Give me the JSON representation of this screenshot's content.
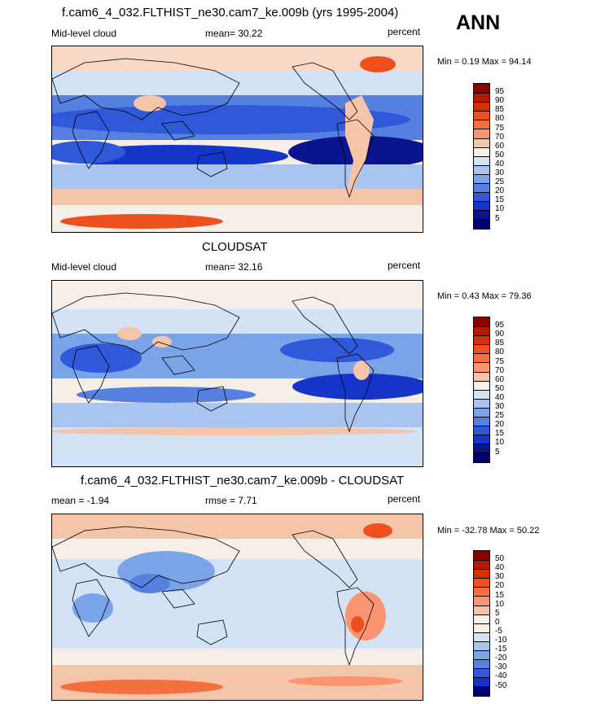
{
  "season": "ANN",
  "panels": [
    {
      "title": "f.cam6_4_032.FLTHIST_ne30.cam7_ke.009b (yrs 1995-2004)",
      "left_label": "Mid-level cloud",
      "center_label": "mean=  30.22",
      "right_label": "percent",
      "minmax": "Min =   0.19 Max =  94.14",
      "levels": [
        "95",
        "90",
        "85",
        "80",
        "75",
        "70",
        "60",
        "50",
        "40",
        "30",
        "25",
        "20",
        "15",
        "10",
        "5"
      ]
    },
    {
      "title": "CLOUDSAT",
      "left_label": "Mid-level cloud",
      "center_label": "mean=  32.16",
      "right_label": "percent",
      "minmax": "Min =   0.43 Max =  79.36",
      "levels": [
        "95",
        "90",
        "85",
        "80",
        "75",
        "70",
        "60",
        "50",
        "40",
        "30",
        "25",
        "20",
        "15",
        "10",
        "5"
      ]
    },
    {
      "title": "f.cam6_4_032.FLTHIST_ne30.cam7_ke.009b - CLOUDSAT",
      "left_label": "mean =  -1.94",
      "center_label": "rmse =   7.71",
      "right_label": "percent",
      "minmax": "Min = -32.78 Max =  50.22",
      "levels": [
        "50",
        "40",
        "30",
        "20",
        "15",
        "10",
        "5",
        "0",
        "-5",
        "-10",
        "-15",
        "-20",
        "-30",
        "-40",
        "-50"
      ]
    }
  ],
  "colors": {
    "abs_scale": [
      "#8b0000",
      "#b51a00",
      "#d73000",
      "#ee4f1f",
      "#f5703f",
      "#f89470",
      "#f5c5aa",
      "#f6efe8",
      "#d3e3f5",
      "#a9c5ef",
      "#7ba3e8",
      "#5680e0",
      "#2f59d8",
      "#1535c8",
      "#0a148c",
      "#000070"
    ],
    "diff_scale": [
      "#8b0000",
      "#b51a00",
      "#d73000",
      "#ee4f1f",
      "#f5703f",
      "#f89470",
      "#f5c5aa",
      "#f6efe8",
      "#f6efe8",
      "#d3e3f5",
      "#a9c5ef",
      "#7ba3e8",
      "#5680e0",
      "#2f59d8",
      "#1535c8",
      "#000070"
    ]
  }
}
